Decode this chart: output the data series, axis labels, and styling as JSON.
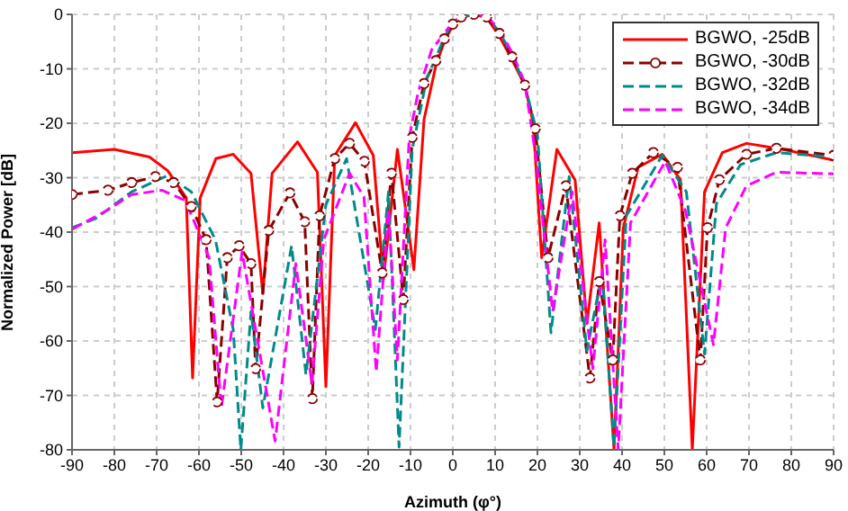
{
  "chart_data": {
    "type": "line",
    "xlabel": "Azimuth (φ°)",
    "ylabel": "Normalized Power [dB]",
    "xlim": [
      -90,
      90
    ],
    "xticks": [
      -90,
      -80,
      -70,
      -60,
      -50,
      -40,
      -30,
      -20,
      -10,
      0,
      10,
      20,
      30,
      40,
      50,
      60,
      70,
      80,
      90
    ],
    "ylim": [
      -80,
      0
    ],
    "yticks": [
      -80,
      -70,
      -60,
      -50,
      -40,
      -30,
      -20,
      -10,
      0
    ],
    "grid": true,
    "legend": "top right",
    "series": [
      {
        "name": "BGWO, -25dB",
        "color": "#ff0000",
        "line_style": "solid",
        "marker": "none",
        "x": [
          -90,
          -80,
          -71.7,
          -67.4,
          -63,
          -61.5,
          -59.7,
          -56,
          -51.9,
          -47.7,
          -44.9,
          -42.7,
          -36.7,
          -32,
          -30,
          -27.9,
          -23,
          -18.8,
          -16.4,
          -13.1,
          -9.2,
          -6.8,
          -4,
          -2,
          0,
          2,
          5,
          8,
          11,
          14,
          17,
          19,
          21,
          24.6,
          28.9,
          31.7,
          34.6,
          38.1,
          40.3,
          43.8,
          49.5,
          53.8,
          56.6,
          59.5,
          63.7,
          69.4,
          78,
          90
        ],
        "values": [
          -25.4,
          -24.8,
          -26.2,
          -28.7,
          -33.7,
          -66.8,
          -33.7,
          -26.5,
          -25.7,
          -29.2,
          -51.3,
          -29.2,
          -23.4,
          -29,
          -68.4,
          -25.9,
          -19.9,
          -25.9,
          -48.6,
          -24.8,
          -46.9,
          -19.3,
          -9.4,
          -5,
          -2,
          -0.6,
          0,
          -0.6,
          -4,
          -8.3,
          -13,
          -20,
          -44.7,
          -24.8,
          -30.4,
          -56.8,
          -38.3,
          -80,
          -39.2,
          -28.1,
          -25.7,
          -30.4,
          -80,
          -32.6,
          -25.4,
          -23.7,
          -24.8,
          -26.8
        ]
      },
      {
        "name": "BGWO, -30dB",
        "color": "#8b0000",
        "line_style": "dashed",
        "marker": "circle",
        "x": [
          -90,
          -81.5,
          -75.9,
          -70.3,
          -66,
          -61.8,
          -58.3,
          -55.7,
          -53.3,
          -50.5,
          -47.7,
          -46.6,
          -43.5,
          -38.5,
          -35,
          -33.2,
          -31.5,
          -27.9,
          -24.4,
          -20.9,
          -16.7,
          -14.5,
          -11.7,
          -9.6,
          -6.8,
          -4,
          -2,
          0,
          2,
          5,
          8,
          11,
          14,
          17,
          19.5,
          22.5,
          26.7,
          32.4,
          34.6,
          37.8,
          39.5,
          42.4,
          47.4,
          53.1,
          58.5,
          60.2,
          63,
          69.4,
          76.5,
          90
        ],
        "values": [
          -33.1,
          -32.3,
          -30.9,
          -29.8,
          -30.9,
          -35.3,
          -41.4,
          -71.2,
          -44.7,
          -42.5,
          -45.8,
          -65.1,
          -39.7,
          -32.8,
          -38.1,
          -70.6,
          -37,
          -26.5,
          -23.7,
          -27,
          -47.5,
          -29.2,
          -52.4,
          -22.6,
          -12.7,
          -8.5,
          -4.5,
          -1.8,
          -0.5,
          0,
          -0.5,
          -3.5,
          -7.8,
          -13,
          -21,
          -44.7,
          -31.5,
          -66.8,
          -49.1,
          -63.5,
          -37,
          -29.2,
          -25.4,
          -28.1,
          -63.5,
          -39.2,
          -30.4,
          -25.7,
          -24.6,
          -25.9
        ]
      },
      {
        "name": "BGWO, -32dB",
        "color": "#008b8b",
        "line_style": "dashed",
        "marker": "none",
        "x": [
          -90,
          -84.4,
          -75.9,
          -67.4,
          -61.8,
          -56.1,
          -51.9,
          -50.1,
          -47.7,
          -44.9,
          -38.1,
          -34.7,
          -30,
          -25.1,
          -18.3,
          -15.2,
          -12.7,
          -9.6,
          -6.1,
          -4,
          -2,
          0,
          2,
          5,
          8,
          11,
          14,
          17,
          20,
          23.2,
          27.5,
          31.7,
          35.3,
          38.1,
          41,
          49.5,
          55.2,
          59.5,
          62.3,
          68,
          76.5,
          90
        ],
        "values": [
          -39.2,
          -37.5,
          -32.6,
          -29.6,
          -32.6,
          -41.4,
          -57.9,
          -80,
          -54.6,
          -72.3,
          -42.5,
          -66.2,
          -35,
          -26.5,
          -57.9,
          -32.6,
          -79.5,
          -24.8,
          -11.6,
          -8,
          -4.2,
          -1.6,
          -0.4,
          0,
          -0.4,
          -3.2,
          -7.5,
          -13,
          -22,
          -58.5,
          -29.8,
          -61.8,
          -47.5,
          -79.5,
          -37,
          -25.9,
          -32.6,
          -62.4,
          -34.8,
          -27.6,
          -25.4,
          -26.2
        ]
      },
      {
        "name": "BGWO, -34dB",
        "color": "#ff00ff",
        "line_style": "dashed",
        "marker": "none",
        "x": [
          -90,
          -81.5,
          -75.9,
          -68.8,
          -63.2,
          -57.6,
          -54.7,
          -49.8,
          -42,
          -37.1,
          -33.3,
          -30.5,
          -24.4,
          -21,
          -18.1,
          -15.2,
          -13.1,
          -10.3,
          -8.2,
          -5,
          -2,
          0,
          2,
          5,
          8,
          11,
          14,
          17,
          19.6,
          23.6,
          28.2,
          33.1,
          36,
          39.1,
          42,
          50.2,
          55,
          61.6,
          64.5,
          69.4,
          76.5,
          90
        ],
        "values": [
          -39.5,
          -35.9,
          -33.1,
          -32.3,
          -34.2,
          -44.7,
          -72.3,
          -43.6,
          -78.4,
          -45.8,
          -67.9,
          -41.4,
          -29.2,
          -33.5,
          -65.7,
          -35.9,
          -63.5,
          -22.6,
          -14.3,
          -6.5,
          -3.5,
          -1.4,
          -0.3,
          0,
          -0.3,
          -2.8,
          -7,
          -12.5,
          -25.9,
          -54.6,
          -32.6,
          -65.1,
          -41.4,
          -80,
          -38.3,
          -27,
          -36.1,
          -60.7,
          -39.2,
          -31.5,
          -29,
          -29.3
        ]
      }
    ]
  }
}
